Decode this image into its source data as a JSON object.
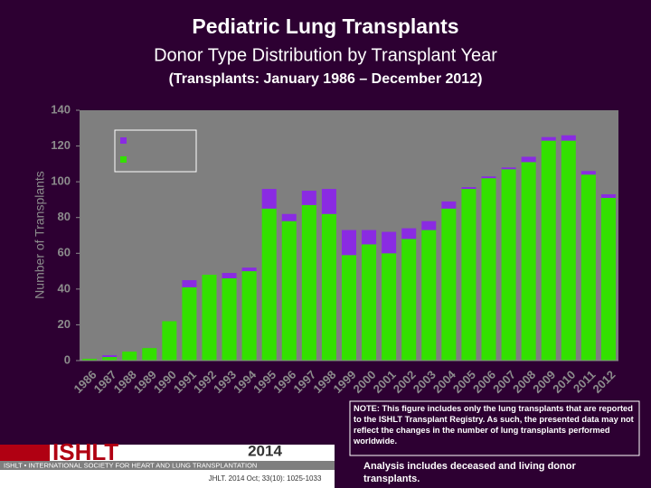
{
  "chart_data": {
    "type": "stacked-bar",
    "title": "Pediatric Lung Transplants",
    "subtitle": "Donor Type Distribution by Transplant Year",
    "subsubtitle": "(Transplants: January 1986 – December 2012)",
    "ylabel": "Number of Transplants",
    "categories": [
      "1986",
      "1987",
      "1988",
      "1989",
      "1990",
      "1991",
      "1992",
      "1993",
      "1994",
      "1995",
      "1996",
      "1997",
      "1998",
      "1999",
      "2000",
      "2001",
      "2002",
      "2003",
      "2004",
      "2005",
      "2006",
      "2007",
      "2008",
      "2009",
      "2010",
      "2011",
      "2012"
    ],
    "series": [
      {
        "color": "#33e000",
        "values": [
          1,
          2,
          5,
          7,
          22,
          41,
          48,
          46,
          50,
          85,
          78,
          87,
          82,
          59,
          65,
          60,
          68,
          73,
          85,
          96,
          102,
          107,
          111,
          123,
          123,
          104,
          91
        ]
      },
      {
        "color": "#8a2be2",
        "values": [
          0,
          1,
          0,
          0,
          0,
          4,
          0,
          3,
          2,
          11,
          4,
          8,
          14,
          14,
          8,
          12,
          6,
          5,
          4,
          1,
          1,
          1,
          3,
          2,
          3,
          2,
          2
        ]
      }
    ],
    "ylim": [
      0,
      140
    ],
    "yticks": [
      0,
      20,
      40,
      60,
      80,
      100,
      120,
      140
    ],
    "grid": false,
    "legend": "top-left"
  },
  "note": "NOTE: This figure includes only the lung transplants that are reported to the ISHLT Transplant Registry. As such, the presented data may not reflect the changes in the number of lung transplants performed worldwide.",
  "analysis": "Analysis includes deceased and living donor transplants.",
  "footer": {
    "logo": "ISHLT",
    "society": "ISHLT • INTERNATIONAL SOCIETY FOR HEART AND LUNG TRANSPLANTATION",
    "year": "2014",
    "citation": "JHLT. 2014 Oct; 33(10): 1025-1033"
  }
}
